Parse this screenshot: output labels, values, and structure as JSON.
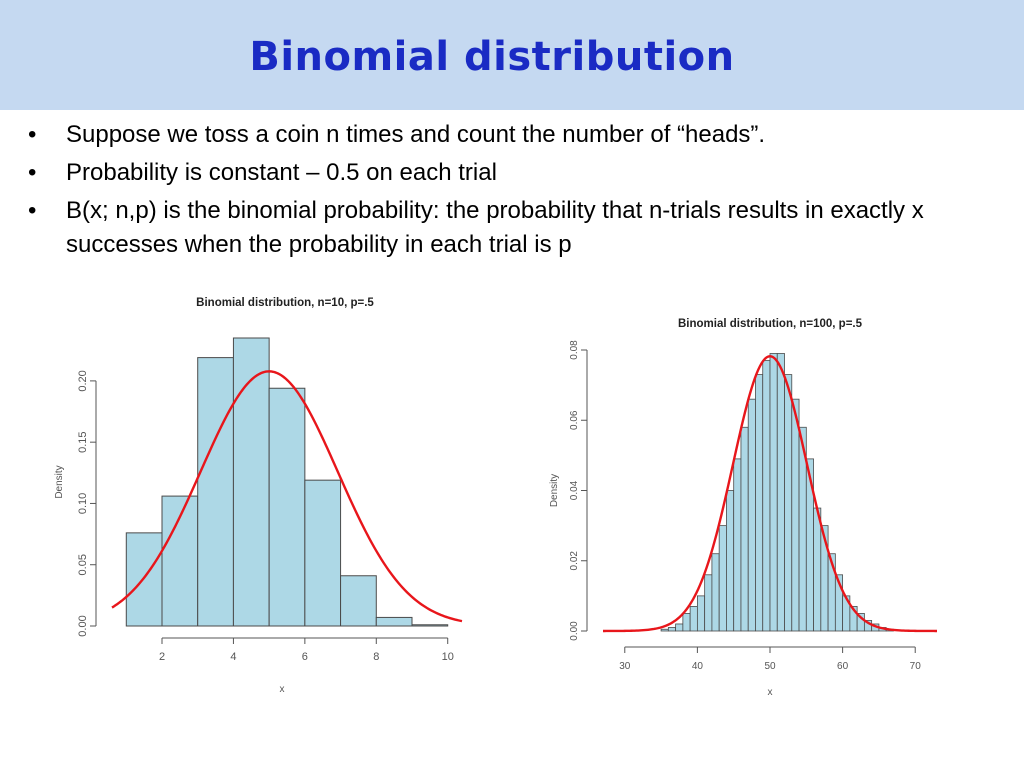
{
  "slide": {
    "title": "Binomial distribution",
    "bullets": [
      "Suppose we toss a coin n times and count the number of “heads”.",
      "Probability is constant – 0.5 on each trial",
      "B(x; n,p) is the binomial probability: the probability that n-trials results in exactly x successes when the probability in each trial is p"
    ],
    "bullet_char": "•",
    "colors": {
      "title": "#1a2bc4",
      "band": "#c5d9f1",
      "bars": "#add8e6",
      "curve": "#e8161b"
    }
  },
  "chart_data": [
    {
      "type": "bar",
      "title": "Binomial distribution, n=10, p=.5",
      "xlabel": "x",
      "ylabel": "Density",
      "bin_edges": [
        1,
        2,
        3,
        4,
        5,
        6,
        7,
        8,
        9,
        10
      ],
      "values": [
        0.076,
        0.106,
        0.219,
        0.235,
        0.194,
        0.119,
        0.041,
        0.007,
        0.001
      ],
      "curve": {
        "type": "normal",
        "mean": 5,
        "sd": 1.92
      },
      "xlim": [
        0.6,
        10.4
      ],
      "ylim": [
        0,
        0.235
      ],
      "xticks": [
        "2",
        "4",
        "6",
        "8",
        "10"
      ],
      "yticks": [
        "0.00",
        "0.05",
        "0.10",
        "0.15",
        "0.20"
      ],
      "grid": false
    },
    {
      "type": "bar",
      "title": "Binomial distribution, n=100, p=.5",
      "xlabel": "x",
      "ylabel": "Density",
      "bin_start": 32,
      "bin_width": 1,
      "values": [
        0.0,
        0.0,
        0.0,
        0.0005,
        0.001,
        0.002,
        0.005,
        0.007,
        0.01,
        0.016,
        0.022,
        0.03,
        0.04,
        0.049,
        0.058,
        0.066,
        0.073,
        0.077,
        0.079,
        0.079,
        0.073,
        0.066,
        0.058,
        0.049,
        0.035,
        0.03,
        0.022,
        0.016,
        0.01,
        0.007,
        0.005,
        0.003,
        0.002,
        0.001,
        0.0005
      ],
      "curve": {
        "type": "normal",
        "mean": 50,
        "sd": 5.1
      },
      "xlim": [
        27,
        73
      ],
      "ylim": [
        0,
        0.08
      ],
      "xticks": [
        "30",
        "40",
        "50",
        "60",
        "70"
      ],
      "yticks": [
        "0.00",
        "0.02",
        "0.04",
        "0.06",
        "0.08"
      ],
      "grid": false
    }
  ]
}
